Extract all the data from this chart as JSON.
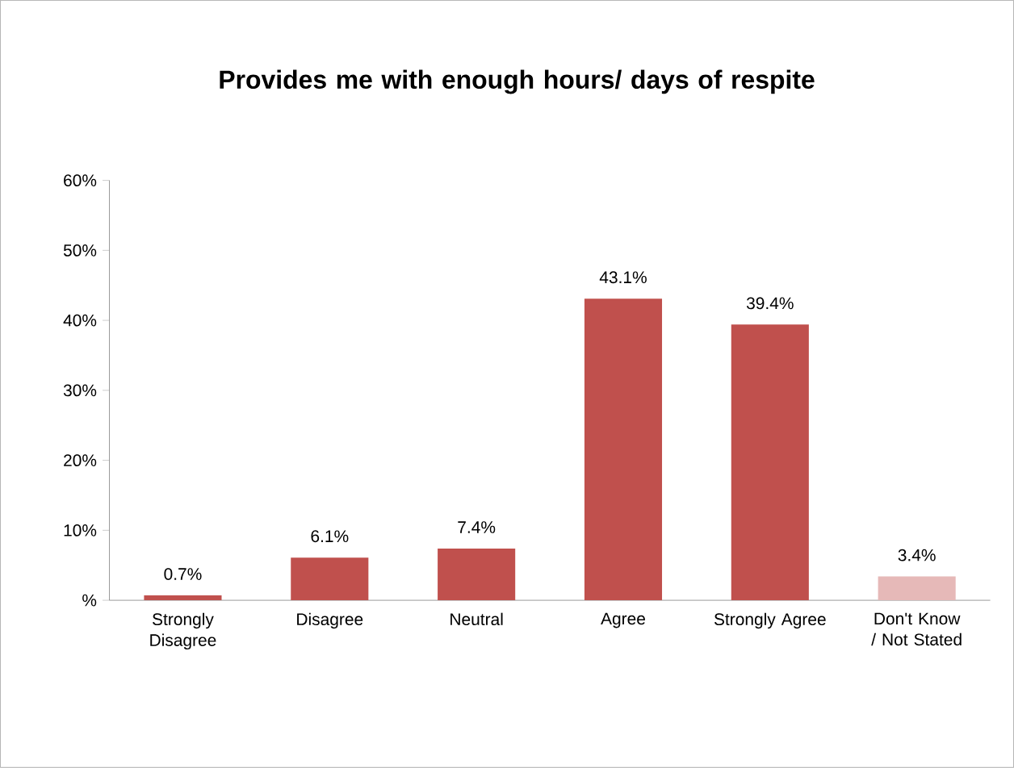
{
  "chart_data": {
    "type": "bar",
    "title": "Provides me with enough hours/ days of respite",
    "categories": [
      "Strongly Disagree",
      "Disagree",
      "Neutral",
      "Agree",
      "Strongly Agree",
      "Don't Know / Not Stated"
    ],
    "values": [
      0.7,
      6.1,
      7.4,
      43.1,
      39.4,
      3.4
    ],
    "colors": [
      "#c0504d",
      "#c0504d",
      "#c0504d",
      "#c0504d",
      "#c0504d",
      "#e6b9b8"
    ],
    "value_labels": [
      "0.7%",
      "6.1%",
      "7.4%",
      "43.1%",
      "39.4%",
      "3.4%"
    ],
    "ylim": [
      0,
      60
    ],
    "yticks": [
      {
        "value": 0,
        "label": "%"
      },
      {
        "value": 10,
        "label": "10%"
      },
      {
        "value": 20,
        "label": "20%"
      },
      {
        "value": 30,
        "label": "30%"
      },
      {
        "value": 40,
        "label": "40%"
      },
      {
        "value": 50,
        "label": "50%"
      },
      {
        "value": 60,
        "label": "60%"
      }
    ],
    "grid": false
  }
}
